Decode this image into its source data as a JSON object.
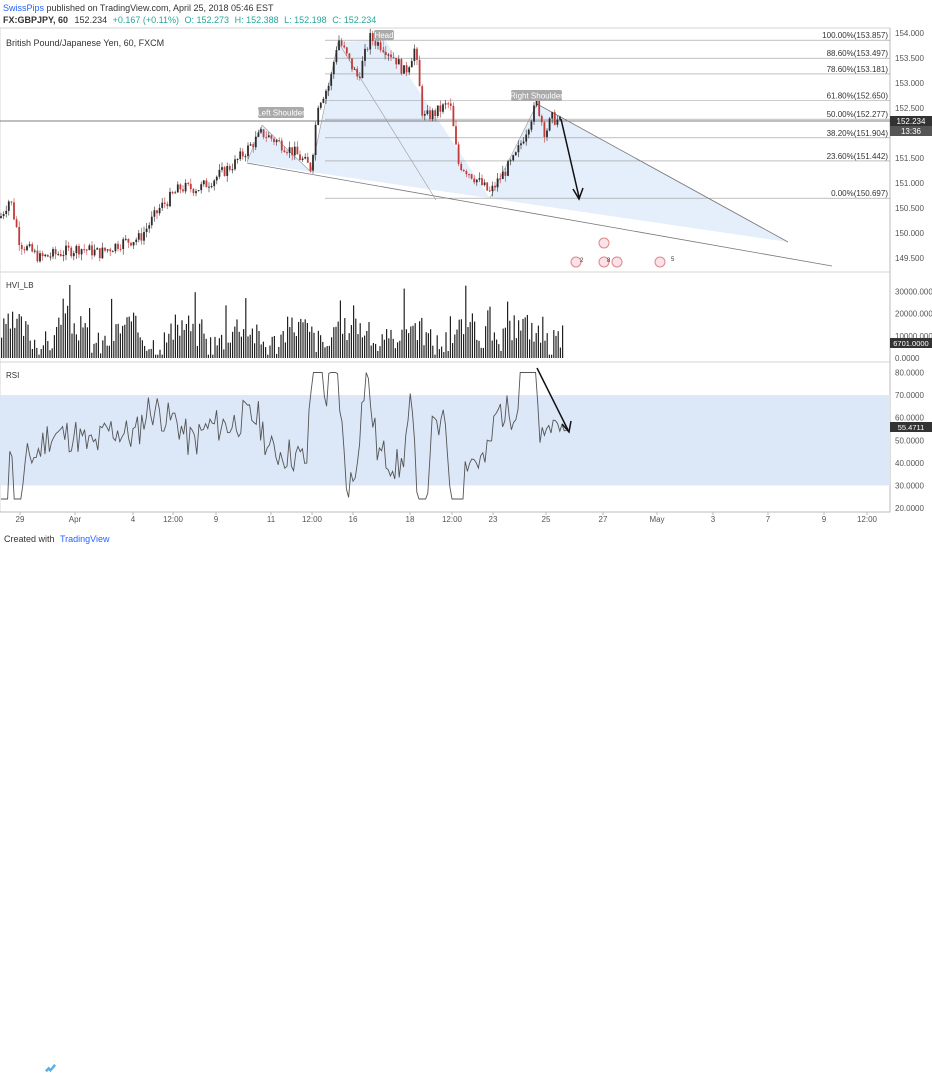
{
  "header": {
    "author": "SwissPips",
    "published_text": "published on TradingView.com, April 25, 2018 05:46 EST",
    "symbol": "FX:GBPJPY, 60",
    "last": "152.234",
    "change": "+0.167 (+0.11%)",
    "open": "O: 152.273",
    "high": "H: 152.388",
    "low": "L: 152.198",
    "close": "C: 152.234"
  },
  "footer": {
    "created_with": "Created with",
    "brand": "TradingView"
  },
  "colors": {
    "candle_up": "#2b2b2b",
    "candle_down": "#c23b3b",
    "fill": "#dde8f7",
    "rsi_band": "#dce7f8",
    "text_blue": "#2962ff",
    "bull": "#26a69a",
    "bear": "#c23b3b"
  },
  "chart_data": [
    {
      "type": "candlestick",
      "title": "British Pound/Japanese Yen, 60, FXCM",
      "ylim": [
        149.3,
        154.1
      ],
      "y_ticks": [
        "154.000",
        "153.500",
        "153.000",
        "152.500",
        "152.000",
        "151.500",
        "151.000",
        "150.500",
        "150.000",
        "149.500"
      ],
      "last_price_label": "152.234",
      "countdown_label": "13:36",
      "annotations": [
        "Head",
        "Left Shoulder",
        "Right Shoulder"
      ],
      "fib_levels": [
        {
          "label": "100.00%(153.857)",
          "value": 153.857
        },
        {
          "label": "88.60%(153.497)",
          "value": 153.497
        },
        {
          "label": "78.60%(153.181)",
          "value": 153.181
        },
        {
          "label": "61.80%(152.650)",
          "value": 152.65
        },
        {
          "label": "50.00%(152.277)",
          "value": 152.277
        },
        {
          "label": "38.20%(151.904)",
          "value": 151.904
        },
        {
          "label": "23.60%(151.442)",
          "value": 151.442
        },
        {
          "label": "0.00%(150.697)",
          "value": 150.697
        }
      ],
      "event_markers": [
        "2",
        "8",
        "5"
      ]
    },
    {
      "type": "bar",
      "title": "HVI_LB",
      "ylim": [
        0,
        36000
      ],
      "y_ticks": [
        "30000.0000",
        "20000.0000",
        "10000.0000",
        "0.0000"
      ],
      "last_value_label": "6701.0000",
      "last_value": 6701
    },
    {
      "type": "line",
      "title": "RSI",
      "ylim": [
        20,
        82
      ],
      "y_ticks": [
        "80.0000",
        "70.0000",
        "60.0000",
        "50.0000",
        "40.0000",
        "30.0000",
        "20.0000"
      ],
      "band": [
        30,
        70
      ],
      "last_value_label": "55.4711",
      "last_value": 55.4711
    }
  ],
  "x_axis": {
    "ticks": [
      "29",
      "Apr",
      "4",
      "12:00",
      "9",
      "11",
      "12:00",
      "16",
      "18",
      "12:00",
      "23",
      "25",
      "27",
      "May",
      "3",
      "7",
      "9",
      "12:00"
    ]
  }
}
